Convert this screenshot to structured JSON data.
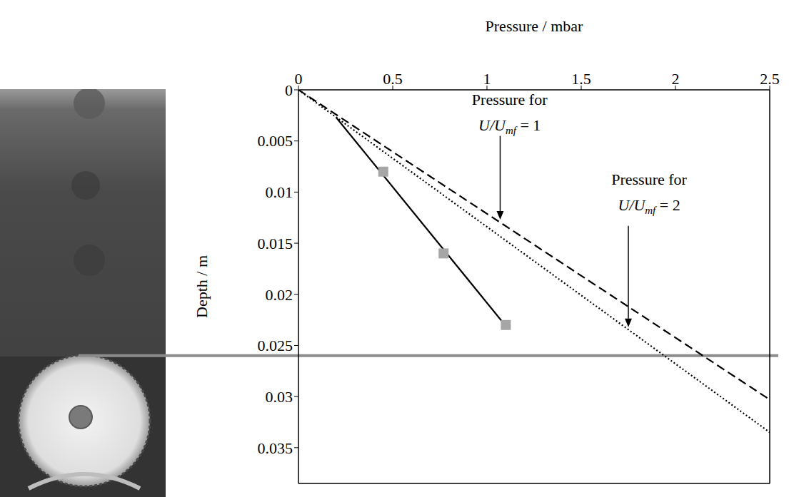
{
  "chart_data": {
    "type": "line",
    "x_label": "Pressure / mbar",
    "y_label": "Depth / m",
    "xlim": [
      0,
      2.5
    ],
    "xticks": [
      0,
      0.5,
      1,
      1.5,
      2,
      2.5
    ],
    "ylim": [
      0,
      0.0385
    ],
    "yticks": [
      0,
      0.005,
      0.01,
      0.015,
      0.02,
      0.025,
      0.03,
      0.035
    ],
    "grid": false,
    "series": [
      {
        "type": "line",
        "color": "#000000",
        "line_style": "dashed",
        "x": [
          0,
          2.5
        ],
        "values": [
          0,
          0.0303
        ]
      },
      {
        "type": "line",
        "color": "#000000",
        "line_style": "dotted",
        "x": [
          0,
          2.5
        ],
        "values": [
          0,
          0.0335
        ]
      },
      {
        "type": "line",
        "color": "#000000",
        "line_style": "solid",
        "x": [
          0.2,
          1.1
        ],
        "values": [
          0.0027,
          0.0231
        ]
      },
      {
        "type": "scatter",
        "color": "#a6a6a6",
        "marker": "square",
        "x": [
          0.45,
          0.77,
          1.1
        ],
        "values": [
          0.008,
          0.016,
          0.023
        ]
      }
    ],
    "reference_lines": [
      {
        "y": 0.026,
        "color": "#8c8c8c"
      }
    ],
    "annotations": [
      {
        "lines": [
          [
            {
              "text": "Pressure for"
            }
          ],
          [
            {
              "text": "U/U",
              "italic": true
            },
            {
              "text": "mf",
              "italic": true,
              "sub": true
            },
            {
              "text": " = 1"
            }
          ]
        ],
        "x": 1.12,
        "y": 0.0009,
        "arrow_from": [
          1.07,
          0.0045
        ],
        "arrow_to": [
          1.07,
          0.0127
        ]
      },
      {
        "lines": [
          [
            {
              "text": "Pressure for"
            }
          ],
          [
            {
              "text": "U/U",
              "italic": true
            },
            {
              "text": "mf",
              "italic": true,
              "sub": true
            },
            {
              "text": " = 2"
            }
          ]
        ],
        "x": 1.86,
        "y": 0.0087,
        "arrow_from": [
          1.75,
          0.0133
        ],
        "arrow_to": [
          1.75,
          0.0232
        ]
      }
    ]
  }
}
